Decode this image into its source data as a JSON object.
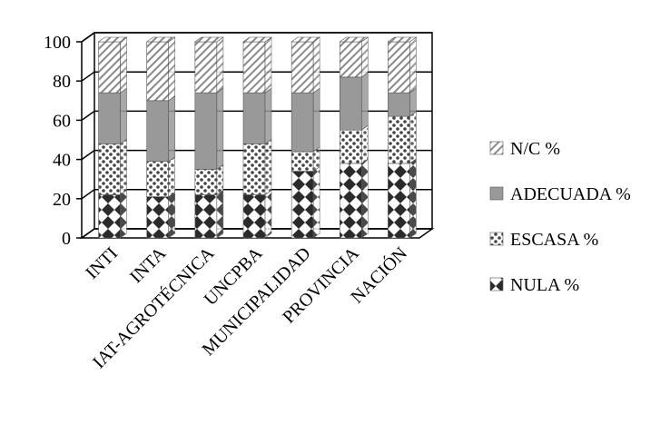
{
  "chart_data": {
    "type": "bar",
    "stacked": true,
    "style": "3d-stacked-column",
    "categories": [
      "INTI",
      "INTA",
      "IAT-AGROTÉCNICA",
      "UNCPBA",
      "MUNICIPALIDAD",
      "PROVINCIA",
      "NACIÓN"
    ],
    "series": [
      {
        "name": "NULA %",
        "values": [
          22,
          21,
          22,
          22,
          34,
          38,
          38
        ],
        "color": "#3a3a3a",
        "pattern": "diamonds"
      },
      {
        "name": "ESCASA %",
        "values": [
          26,
          18,
          13,
          26,
          10,
          17,
          24
        ],
        "color": "#8c8c8c",
        "pattern": "dots"
      },
      {
        "name": "ADECUADA %",
        "values": [
          26,
          31,
          39,
          26,
          30,
          27,
          12
        ],
        "color": "#9a9a9a",
        "pattern": "solid"
      },
      {
        "name": "N/C %",
        "values": [
          26,
          30,
          26,
          26,
          26,
          18,
          26
        ],
        "color": "#e2e2e2",
        "pattern": "hatch"
      }
    ],
    "ylim": [
      0,
      100
    ],
    "yticks": [
      0,
      20,
      40,
      60,
      80,
      100
    ],
    "grid": true,
    "legend": "right",
    "title": "",
    "xlabel": "",
    "ylabel": ""
  }
}
